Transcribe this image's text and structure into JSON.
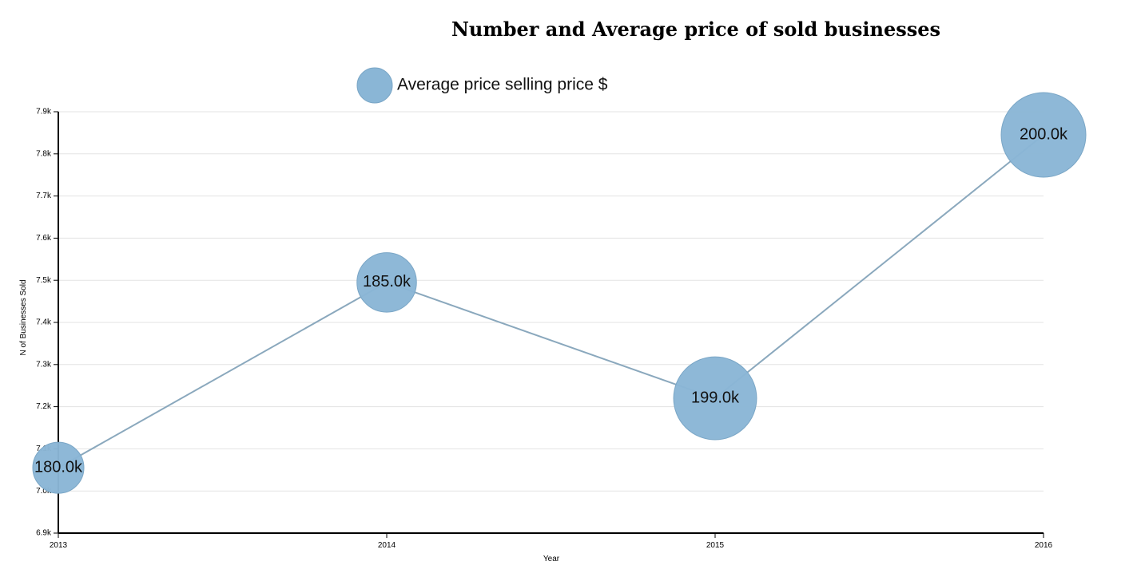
{
  "chart_data": {
    "type": "scatter",
    "title": "Number and Average price of sold businesses",
    "xlabel": "Year",
    "ylabel": "N of Businesses Sold",
    "x": [
      2013,
      2014,
      2015,
      2016
    ],
    "x_tick_labels": [
      "2013",
      "2014",
      "2015",
      "2016"
    ],
    "xlim": [
      2013,
      2016
    ],
    "ylim": [
      6900,
      7900
    ],
    "y_ticks": [
      6900,
      7000,
      7100,
      7200,
      7300,
      7400,
      7500,
      7600,
      7700,
      7800,
      7900
    ],
    "y_tick_labels": [
      "6.9k",
      "7.0k",
      "7.1k",
      "7.2k",
      "7.3k",
      "7.4k",
      "7.5k",
      "7.6k",
      "7.7k",
      "7.8k",
      "7.9k"
    ],
    "grid": true,
    "legend_position": "top-center",
    "connecting_line": true,
    "series": [
      {
        "name": "Average price selling price $",
        "y": [
          7055,
          7495,
          7220,
          7845
        ],
        "size_values": [
          180000,
          185000,
          199000,
          200000
        ],
        "bubble_labels": [
          "180.0k",
          "185.0k",
          "199.0k",
          "200.0k"
        ],
        "bubble_color": "#8ab6d6",
        "bubble_stroke": "#7aa6c6",
        "line_color": "#8aa8bd"
      }
    ]
  }
}
